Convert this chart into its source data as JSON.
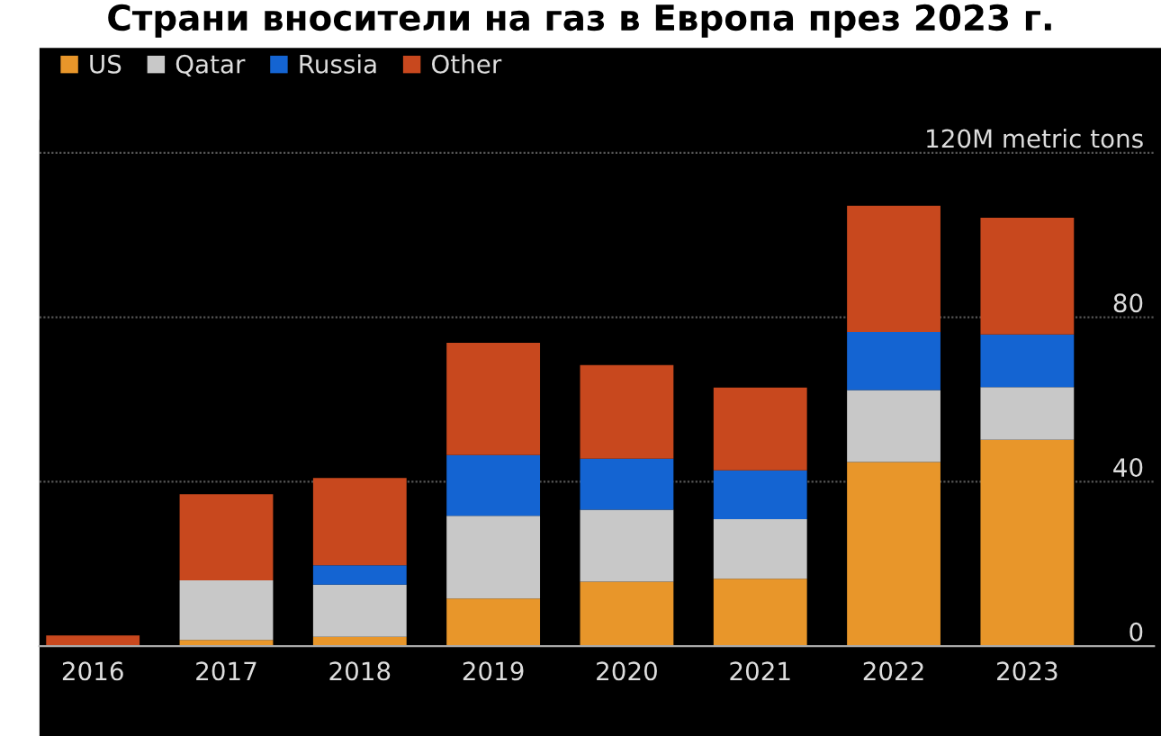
{
  "chart_data": {
    "type": "bar",
    "title": "Страни вносители на газ в Европа през 2023 г.",
    "categories": [
      "2016",
      "2017",
      "2018",
      "2019",
      "2020",
      "2021",
      "2022",
      "2023"
    ],
    "stacked": true,
    "series": [
      {
        "name": "US",
        "color": "#e8962a",
        "values": [
          0,
          1.5,
          2.3,
          11.6,
          15.7,
          16.4,
          44.8,
          50.2
        ]
      },
      {
        "name": "Qatar",
        "color": "#c8c8c8",
        "values": [
          0,
          14.5,
          12.7,
          20.1,
          17.5,
          14.5,
          17.5,
          12.8
        ]
      },
      {
        "name": "Russia",
        "color": "#1464d2",
        "values": [
          0,
          0,
          4.7,
          14.8,
          12.4,
          11.9,
          14.1,
          12.8
        ]
      },
      {
        "name": "Other",
        "color": "#c8481e",
        "values": [
          2.6,
          21,
          21.2,
          27.3,
          22.8,
          20.1,
          30.7,
          28.4
        ]
      }
    ],
    "ylim": [
      0,
      128
    ],
    "yticks": [
      0,
      40,
      80,
      {
        "value": 120,
        "label": "120M metric tons"
      }
    ],
    "grid": "y",
    "legend": "top left"
  }
}
